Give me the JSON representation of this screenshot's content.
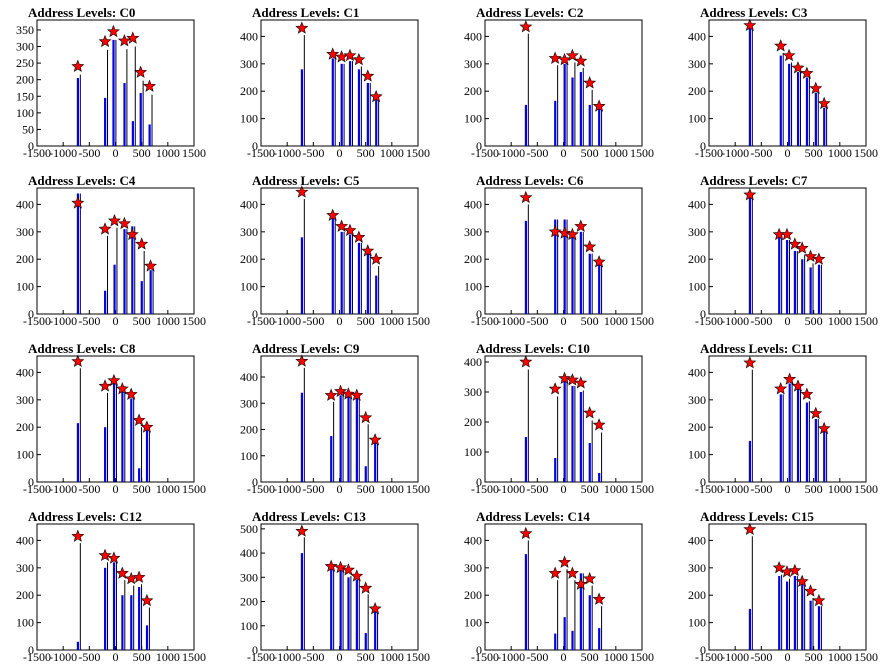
{
  "chart_data": [
    {
      "type": "bar",
      "title": "Address Levels: C0",
      "xlim": [
        -1500,
        1500
      ],
      "ylim": [
        0,
        380
      ],
      "yticks": [
        0,
        50,
        100,
        150,
        200,
        250,
        300,
        350
      ],
      "xticks": [
        -1500,
        -1000,
        -500,
        0,
        500,
        1000,
        1500
      ],
      "bars": [
        [
          -720,
          205
        ],
        [
          -200,
          145
        ],
        [
          -40,
          320
        ],
        [
          170,
          190
        ],
        [
          330,
          75
        ],
        [
          480,
          160
        ],
        [
          650,
          65
        ]
      ],
      "peaks": [
        [
          -720,
          240
        ],
        [
          -200,
          315
        ],
        [
          -40,
          345
        ],
        [
          170,
          317
        ],
        [
          330,
          325
        ],
        [
          480,
          222
        ],
        [
          650,
          180
        ]
      ]
    },
    {
      "type": "bar",
      "title": "Address Levels: C1",
      "xlim": [
        -1500,
        1500
      ],
      "ylim": [
        0,
        460
      ],
      "yticks": [
        0,
        100,
        200,
        300,
        400
      ],
      "xticks": [
        -1500,
        -1000,
        -500,
        0,
        500,
        1000,
        1500
      ],
      "bars": [
        [
          -720,
          280
        ],
        [
          -130,
          320
        ],
        [
          40,
          300
        ],
        [
          200,
          310
        ],
        [
          370,
          280
        ],
        [
          540,
          230
        ],
        [
          700,
          170
        ]
      ],
      "peaks": [
        [
          -720,
          430
        ],
        [
          -130,
          335
        ],
        [
          40,
          325
        ],
        [
          200,
          330
        ],
        [
          370,
          315
        ],
        [
          540,
          255
        ],
        [
          700,
          180
        ]
      ]
    },
    {
      "type": "bar",
      "title": "Address Levels: C2",
      "xlim": [
        -1500,
        1500
      ],
      "ylim": [
        0,
        460
      ],
      "yticks": [
        0,
        100,
        200,
        300,
        400
      ],
      "xticks": [
        -1500,
        -1000,
        -500,
        0,
        500,
        1000,
        1500
      ],
      "bars": [
        [
          -720,
          150
        ],
        [
          -160,
          165
        ],
        [
          20,
          300
        ],
        [
          170,
          250
        ],
        [
          330,
          270
        ],
        [
          500,
          150
        ],
        [
          680,
          145
        ]
      ],
      "peaks": [
        [
          -720,
          435
        ],
        [
          -160,
          320
        ],
        [
          20,
          315
        ],
        [
          170,
          330
        ],
        [
          330,
          310
        ],
        [
          500,
          230
        ],
        [
          680,
          145
        ]
      ]
    },
    {
      "type": "bar",
      "title": "Address Levels: C3",
      "xlim": [
        -1500,
        1500
      ],
      "ylim": [
        0,
        460
      ],
      "yticks": [
        0,
        100,
        200,
        300,
        400
      ],
      "xticks": [
        -1500,
        -1000,
        -500,
        0,
        500,
        1000,
        1500
      ],
      "bars": [
        [
          -720,
          430
        ],
        [
          -130,
          330
        ],
        [
          30,
          300
        ],
        [
          200,
          270
        ],
        [
          370,
          250
        ],
        [
          540,
          195
        ],
        [
          700,
          140
        ]
      ],
      "peaks": [
        [
          -720,
          440
        ],
        [
          -130,
          365
        ],
        [
          30,
          330
        ],
        [
          200,
          285
        ],
        [
          370,
          265
        ],
        [
          540,
          210
        ],
        [
          700,
          155
        ]
      ]
    },
    {
      "type": "bar",
      "title": "Address Levels: C4",
      "xlim": [
        -1500,
        1500
      ],
      "ylim": [
        0,
        460
      ],
      "yticks": [
        0,
        100,
        200,
        300,
        400
      ],
      "xticks": [
        -1500,
        -1000,
        -500,
        0,
        500,
        1000,
        1500
      ],
      "bars": [
        [
          -720,
          440
        ],
        [
          -200,
          85
        ],
        [
          -20,
          180
        ],
        [
          170,
          310
        ],
        [
          320,
          320
        ],
        [
          500,
          120
        ],
        [
          670,
          160
        ]
      ],
      "peaks": [
        [
          -720,
          405
        ],
        [
          -200,
          310
        ],
        [
          -20,
          340
        ],
        [
          170,
          330
        ],
        [
          320,
          290
        ],
        [
          500,
          255
        ],
        [
          670,
          175
        ]
      ]
    },
    {
      "type": "bar",
      "title": "Address Levels: C5",
      "xlim": [
        -1500,
        1500
      ],
      "ylim": [
        0,
        460
      ],
      "yticks": [
        0,
        100,
        200,
        300,
        400
      ],
      "xticks": [
        -1500,
        -1000,
        -500,
        0,
        500,
        1000,
        1500
      ],
      "bars": [
        [
          -720,
          280
        ],
        [
          -130,
          350
        ],
        [
          40,
          300
        ],
        [
          200,
          290
        ],
        [
          370,
          260
        ],
        [
          540,
          220
        ],
        [
          700,
          140
        ]
      ],
      "peaks": [
        [
          -720,
          445
        ],
        [
          -130,
          360
        ],
        [
          40,
          320
        ],
        [
          200,
          305
        ],
        [
          370,
          280
        ],
        [
          540,
          230
        ],
        [
          700,
          200
        ]
      ]
    },
    {
      "type": "bar",
      "title": "Address Levels: C6",
      "xlim": [
        -1500,
        1500
      ],
      "ylim": [
        0,
        460
      ],
      "yticks": [
        0,
        100,
        200,
        300,
        400
      ],
      "xticks": [
        -1500,
        -1000,
        -500,
        0,
        500,
        1000,
        1500
      ],
      "bars": [
        [
          -720,
          340
        ],
        [
          -160,
          345
        ],
        [
          20,
          345
        ],
        [
          170,
          280
        ],
        [
          330,
          300
        ],
        [
          500,
          220
        ],
        [
          680,
          190
        ]
      ],
      "peaks": [
        [
          -720,
          425
        ],
        [
          -160,
          300
        ],
        [
          20,
          295
        ],
        [
          170,
          290
        ],
        [
          330,
          320
        ],
        [
          500,
          245
        ],
        [
          680,
          190
        ]
      ]
    },
    {
      "type": "bar",
      "title": "Address Levels: C7",
      "xlim": [
        -1500,
        1500
      ],
      "ylim": [
        0,
        460
      ],
      "yticks": [
        0,
        100,
        200,
        300,
        400
      ],
      "xticks": [
        -1500,
        -1000,
        -500,
        0,
        500,
        1000,
        1500
      ],
      "bars": [
        [
          -720,
          440
        ],
        [
          -160,
          290
        ],
        [
          -10,
          270
        ],
        [
          140,
          230
        ],
        [
          280,
          200
        ],
        [
          440,
          170
        ],
        [
          600,
          180
        ]
      ],
      "peaks": [
        [
          -720,
          435
        ],
        [
          -160,
          290
        ],
        [
          -10,
          290
        ],
        [
          140,
          255
        ],
        [
          280,
          240
        ],
        [
          440,
          210
        ],
        [
          600,
          200
        ]
      ]
    },
    {
      "type": "bar",
      "title": "Address Levels: C8",
      "xlim": [
        -1500,
        1500
      ],
      "ylim": [
        0,
        460
      ],
      "yticks": [
        0,
        100,
        200,
        300,
        400
      ],
      "xticks": [
        -1500,
        -1000,
        -500,
        0,
        500,
        1000,
        1500
      ],
      "bars": [
        [
          -720,
          215
        ],
        [
          -200,
          200
        ],
        [
          -30,
          360
        ],
        [
          130,
          350
        ],
        [
          300,
          305
        ],
        [
          450,
          50
        ],
        [
          600,
          200
        ]
      ],
      "peaks": [
        [
          -720,
          440
        ],
        [
          -200,
          350
        ],
        [
          -30,
          370
        ],
        [
          130,
          340
        ],
        [
          300,
          320
        ],
        [
          450,
          225
        ],
        [
          600,
          200
        ]
      ]
    },
    {
      "type": "bar",
      "title": "Address Levels: C9",
      "xlim": [
        -1500,
        1500
      ],
      "ylim": [
        0,
        480
      ],
      "yticks": [
        0,
        100,
        200,
        300,
        400
      ],
      "xticks": [
        -1500,
        -1000,
        -500,
        0,
        500,
        1000,
        1500
      ],
      "bars": [
        [
          -720,
          340
        ],
        [
          -160,
          175
        ],
        [
          20,
          330
        ],
        [
          170,
          330
        ],
        [
          330,
          330
        ],
        [
          500,
          60
        ],
        [
          680,
          150
        ]
      ],
      "peaks": [
        [
          -720,
          460
        ],
        [
          -160,
          330
        ],
        [
          20,
          345
        ],
        [
          170,
          335
        ],
        [
          330,
          330
        ],
        [
          500,
          245
        ],
        [
          680,
          160
        ]
      ]
    },
    {
      "type": "bar",
      "title": "Address Levels: C10",
      "xlim": [
        -1500,
        1500
      ],
      "ylim": [
        0,
        420
      ],
      "yticks": [
        0,
        100,
        200,
        300,
        400
      ],
      "xticks": [
        -1500,
        -1000,
        -500,
        0,
        500,
        1000,
        1500
      ],
      "bars": [
        [
          -720,
          150
        ],
        [
          -160,
          80
        ],
        [
          20,
          340
        ],
        [
          170,
          320
        ],
        [
          330,
          300
        ],
        [
          500,
          130
        ],
        [
          680,
          30
        ]
      ],
      "peaks": [
        [
          -720,
          400
        ],
        [
          -160,
          310
        ],
        [
          20,
          345
        ],
        [
          170,
          340
        ],
        [
          330,
          330
        ],
        [
          500,
          230
        ],
        [
          680,
          190
        ]
      ]
    },
    {
      "type": "bar",
      "title": "Address Levels: C11",
      "xlim": [
        -1500,
        1500
      ],
      "ylim": [
        0,
        460
      ],
      "yticks": [
        0,
        100,
        200,
        300,
        400
      ],
      "xticks": [
        -1500,
        -1000,
        -500,
        0,
        500,
        1000,
        1500
      ],
      "bars": [
        [
          -720,
          150
        ],
        [
          -130,
          320
        ],
        [
          40,
          360
        ],
        [
          200,
          340
        ],
        [
          370,
          290
        ],
        [
          540,
          230
        ],
        [
          700,
          190
        ]
      ],
      "peaks": [
        [
          -720,
          435
        ],
        [
          -130,
          340
        ],
        [
          40,
          375
        ],
        [
          200,
          350
        ],
        [
          370,
          320
        ],
        [
          540,
          250
        ],
        [
          700,
          195
        ]
      ]
    },
    {
      "type": "bar",
      "title": "Address Levels: C12",
      "xlim": [
        -1500,
        1500
      ],
      "ylim": [
        0,
        460
      ],
      "yticks": [
        0,
        100,
        200,
        300,
        400
      ],
      "xticks": [
        -1500,
        -1000,
        -500,
        0,
        500,
        1000,
        1500
      ],
      "bars": [
        [
          -720,
          30
        ],
        [
          -200,
          300
        ],
        [
          -30,
          320
        ],
        [
          130,
          200
        ],
        [
          300,
          200
        ],
        [
          450,
          230
        ],
        [
          600,
          90
        ]
      ],
      "peaks": [
        [
          -720,
          415
        ],
        [
          -200,
          345
        ],
        [
          -30,
          335
        ],
        [
          130,
          280
        ],
        [
          300,
          260
        ],
        [
          450,
          265
        ],
        [
          600,
          180
        ]
      ]
    },
    {
      "type": "bar",
      "title": "Address Levels: C13",
      "xlim": [
        -1500,
        1500
      ],
      "ylim": [
        0,
        520
      ],
      "yticks": [
        0,
        100,
        200,
        300,
        400,
        500
      ],
      "xticks": [
        -1500,
        -1000,
        -500,
        0,
        500,
        1000,
        1500
      ],
      "bars": [
        [
          -720,
          400
        ],
        [
          -160,
          340
        ],
        [
          20,
          340
        ],
        [
          170,
          300
        ],
        [
          330,
          290
        ],
        [
          500,
          70
        ],
        [
          680,
          160
        ]
      ],
      "peaks": [
        [
          -720,
          490
        ],
        [
          -160,
          345
        ],
        [
          20,
          340
        ],
        [
          170,
          330
        ],
        [
          330,
          305
        ],
        [
          500,
          255
        ],
        [
          680,
          170
        ]
      ]
    },
    {
      "type": "bar",
      "title": "Address Levels: C14",
      "xlim": [
        -1500,
        1500
      ],
      "ylim": [
        0,
        460
      ],
      "yticks": [
        0,
        100,
        200,
        300,
        400
      ],
      "xticks": [
        -1500,
        -1000,
        -500,
        0,
        500,
        1000,
        1500
      ],
      "bars": [
        [
          -720,
          350
        ],
        [
          -160,
          60
        ],
        [
          20,
          120
        ],
        [
          170,
          70
        ],
        [
          330,
          280
        ],
        [
          500,
          200
        ],
        [
          680,
          80
        ]
      ],
      "peaks": [
        [
          -720,
          425
        ],
        [
          -160,
          280
        ],
        [
          20,
          320
        ],
        [
          170,
          280
        ],
        [
          330,
          240
        ],
        [
          500,
          260
        ],
        [
          680,
          185
        ]
      ]
    },
    {
      "type": "bar",
      "title": "Address Levels: C15",
      "xlim": [
        -1500,
        1500
      ],
      "ylim": [
        0,
        460
      ],
      "yticks": [
        0,
        100,
        200,
        300,
        400
      ],
      "xticks": [
        -1500,
        -1000,
        -500,
        0,
        500,
        1000,
        1500
      ],
      "bars": [
        [
          -720,
          150
        ],
        [
          -160,
          270
        ],
        [
          -10,
          250
        ],
        [
          140,
          270
        ],
        [
          280,
          250
        ],
        [
          440,
          180
        ],
        [
          600,
          160
        ]
      ],
      "peaks": [
        [
          -720,
          440
        ],
        [
          -160,
          300
        ],
        [
          -10,
          285
        ],
        [
          140,
          290
        ],
        [
          280,
          250
        ],
        [
          440,
          215
        ],
        [
          600,
          180
        ]
      ]
    }
  ]
}
